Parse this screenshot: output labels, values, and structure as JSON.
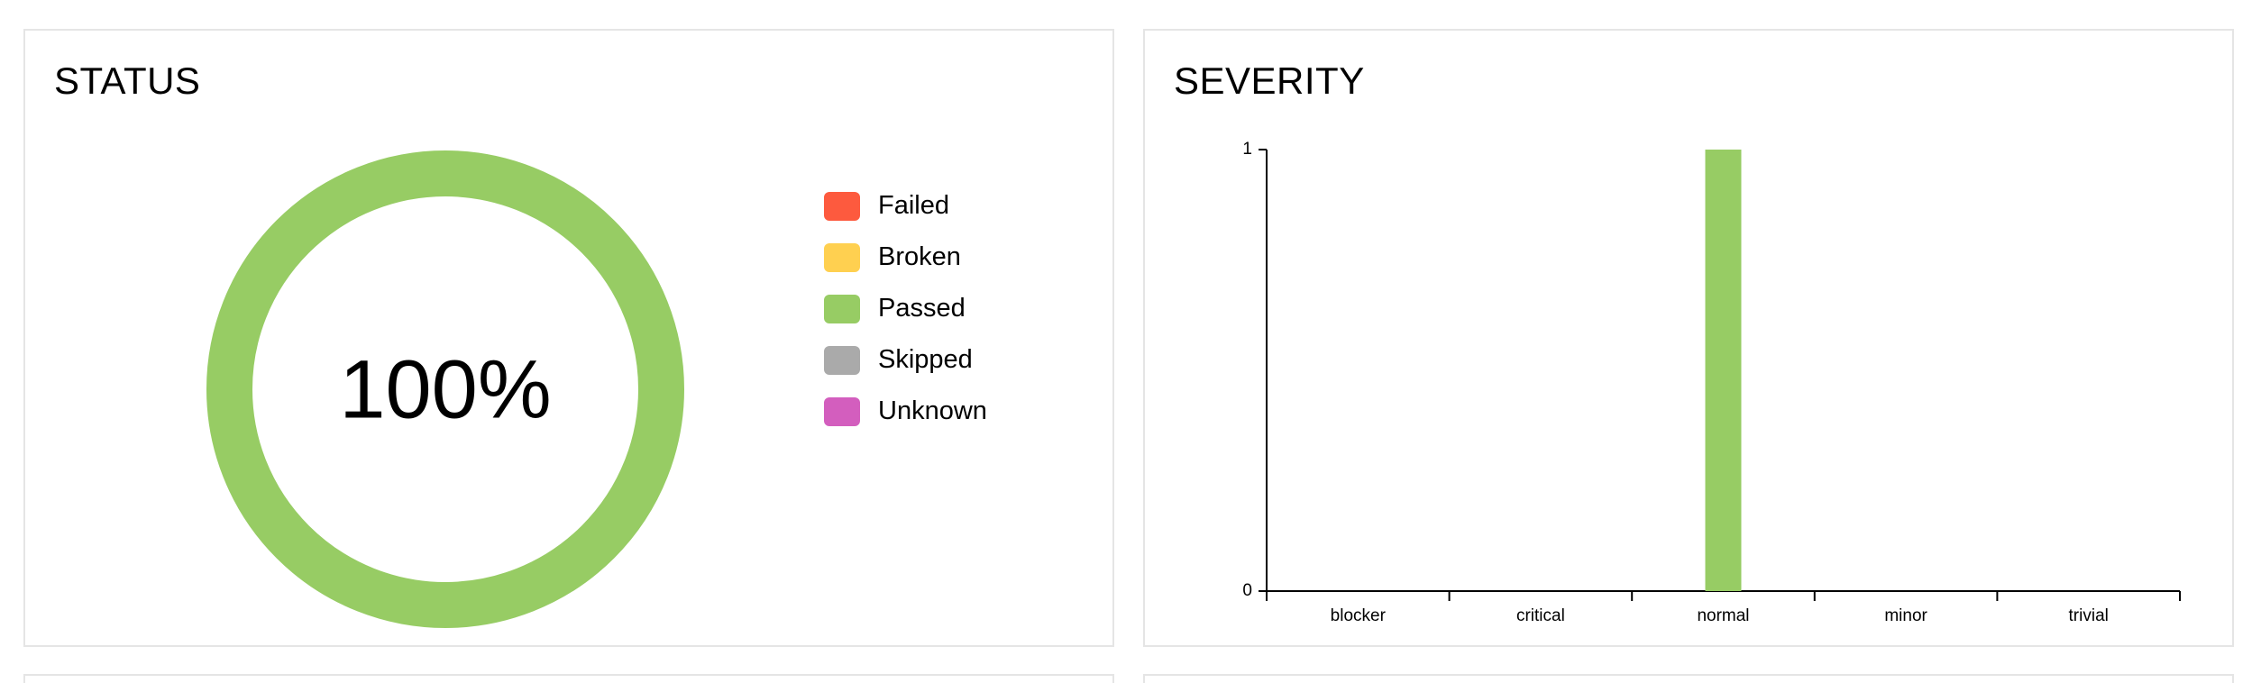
{
  "status": {
    "title": "STATUS",
    "center_label": "100%",
    "legend": [
      {
        "label": "Failed",
        "color": "#fd5a3e"
      },
      {
        "label": "Broken",
        "color": "#ffd050"
      },
      {
        "label": "Passed",
        "color": "#97cc64"
      },
      {
        "label": "Skipped",
        "color": "#aaaaaa"
      },
      {
        "label": "Unknown",
        "color": "#d35ebe"
      }
    ]
  },
  "severity": {
    "title": "SEVERITY"
  },
  "chart_data": [
    {
      "type": "pie",
      "categories": [
        "Failed",
        "Broken",
        "Passed",
        "Skipped",
        "Unknown"
      ],
      "values": [
        0,
        0,
        100,
        0,
        0
      ],
      "colors": [
        "#fd5a3e",
        "#ffd050",
        "#97cc64",
        "#aaaaaa",
        "#d35ebe"
      ],
      "center_label": "100%",
      "legend_position": "right",
      "title": "STATUS"
    },
    {
      "type": "bar",
      "title": "SEVERITY",
      "categories": [
        "blocker",
        "critical",
        "normal",
        "minor",
        "trivial"
      ],
      "values": [
        0,
        0,
        1,
        0,
        0
      ],
      "ylim": [
        0,
        1
      ],
      "yticks": [
        0,
        1
      ],
      "bar_color": "#97cc64",
      "grid": false
    }
  ]
}
